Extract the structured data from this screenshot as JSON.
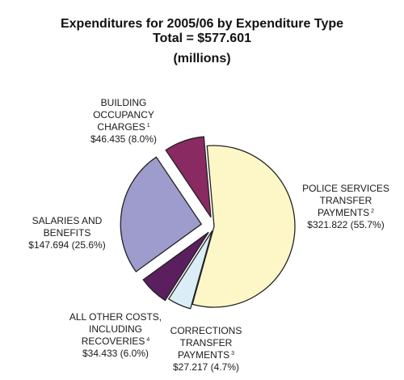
{
  "title": {
    "line1": "Expenditures for 2005/06 by Expenditure Type",
    "line2": "Total = $577.601",
    "line3": "(millions)"
  },
  "chart_data": {
    "type": "pie",
    "title": "Expenditures for 2005/06 by Expenditure Type",
    "subtitle": "Total = $577.601 (millions)",
    "total": 577.601,
    "slices": [
      {
        "label": "POLICE SERVICES TRANSFER PAYMENTS",
        "footnote": "2",
        "value": 321.822,
        "percent": 55.7,
        "value_text": "$321.822 (55.7%)",
        "color": "#fdf7c8",
        "label_lines": [
          "POLICE SERVICES",
          "TRANSFER",
          "PAYMENTS"
        ]
      },
      {
        "label": "CORRECTIONS TRANSFER PAYMENTS",
        "footnote": "3",
        "value": 27.217,
        "percent": 4.7,
        "value_text": "$27.217 (4.7%)",
        "color": "#dbeef7",
        "label_lines": [
          "CORRECTIONS",
          "TRANSFER",
          "PAYMENTS"
        ]
      },
      {
        "label": "ALL OTHER COSTS, INCLUDING RECOVERIES",
        "footnote": "4",
        "value": 34.433,
        "percent": 6.0,
        "value_text": "$34.433 (6.0%)",
        "color": "#5b1e5e",
        "label_lines": [
          "ALL OTHER COSTS,",
          "INCLUDING",
          "RECOVERIES"
        ]
      },
      {
        "label": "SALARIES AND BENEFITS",
        "footnote": "",
        "value": 147.694,
        "percent": 25.6,
        "value_text": "$147.694 (25.6%)",
        "color": "#9e9ccc",
        "label_lines": [
          "SALARIES AND",
          "BENEFITS"
        ]
      },
      {
        "label": "BUILDING OCCUPANCY CHARGES",
        "footnote": "1",
        "value": 46.435,
        "percent": 8.0,
        "value_text": "$46.435 (8.0%)",
        "color": "#8a2a62",
        "label_lines": [
          "BUILDING",
          "OCCUPANCY",
          "CHARGES"
        ]
      }
    ]
  }
}
